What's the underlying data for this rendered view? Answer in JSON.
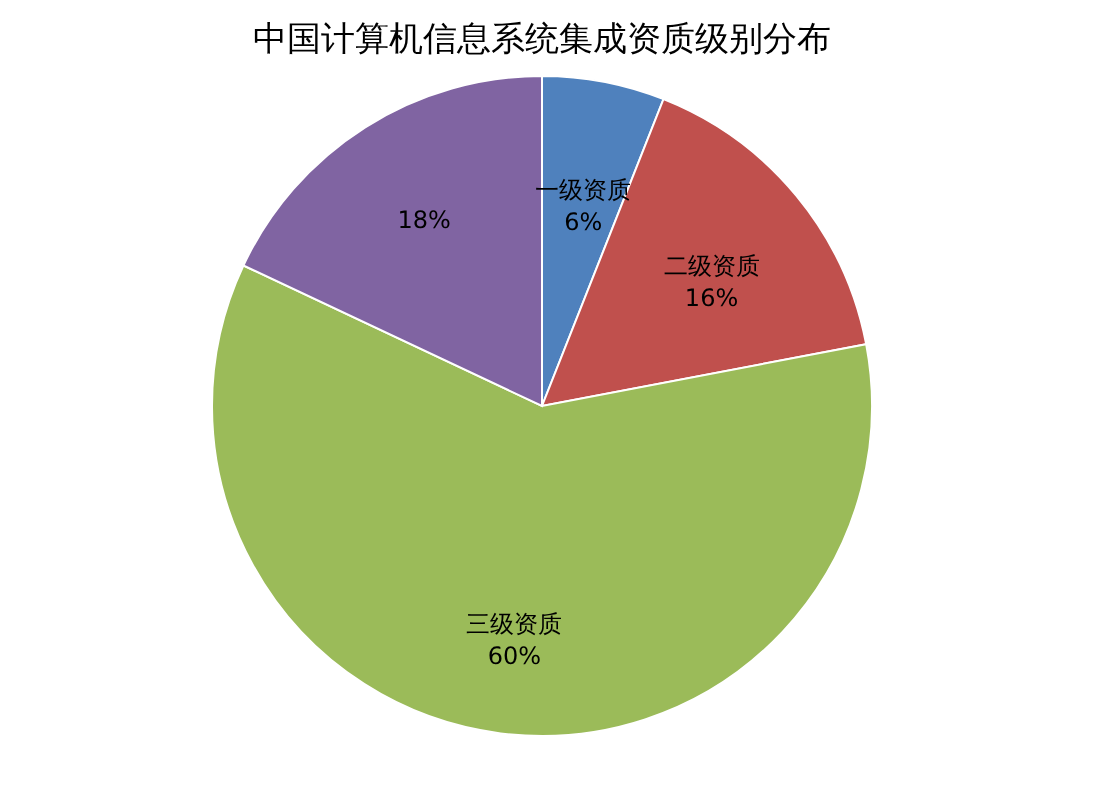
{
  "chart_data": {
    "type": "pie",
    "title": "中国计算机信息系统集成资质级别分布",
    "categories": [
      "一级资质",
      "二级资质",
      "三级资质",
      null
    ],
    "values": [
      6,
      16,
      60,
      18
    ],
    "colors": [
      "#4f81bd",
      "#c0504d",
      "#9bbb59",
      "#8064a2"
    ],
    "value_labels": [
      "6%",
      "16%",
      "60%",
      "18%"
    ],
    "legend": false
  }
}
